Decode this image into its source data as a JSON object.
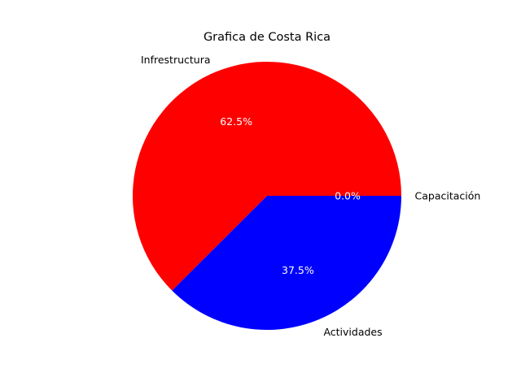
{
  "chart_data": {
    "type": "pie",
    "title": "Grafica de Costa Rica",
    "categories": [
      "Capacitación",
      "Infrestructura",
      "Actividades"
    ],
    "values": [
      0,
      62.5,
      37.5
    ],
    "percent_labels": [
      "0.0%",
      "62.5%",
      "37.5%"
    ],
    "colors": [
      "#008000",
      "#ff0000",
      "#0000ff"
    ],
    "start_angle_deg": 0,
    "direction": "counterclockwise",
    "legend": "none",
    "grid": false
  }
}
